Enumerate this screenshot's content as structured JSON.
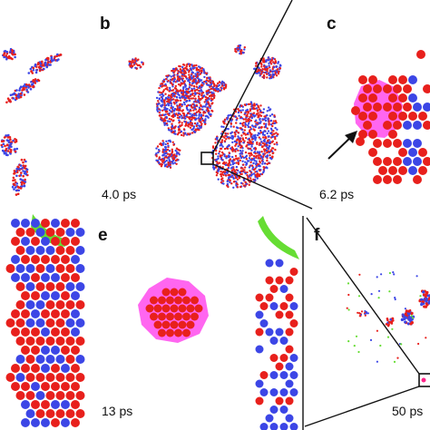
{
  "figure": {
    "panels": [
      {
        "id": "a",
        "label": "",
        "time": ""
      },
      {
        "id": "b",
        "label": "b",
        "time": "4.0 ps"
      },
      {
        "id": "c",
        "label": "c",
        "time": "6.2 ps"
      },
      {
        "id": "d",
        "label": "",
        "time": ""
      },
      {
        "id": "e",
        "label": "e",
        "time": "13 ps"
      },
      {
        "id": "f",
        "label": "f",
        "time": "50 ps"
      }
    ]
  },
  "colors": {
    "atom_red": "#e8201c",
    "atom_blue": "#3c46e6",
    "cluster_pink": "#ff55ee",
    "surface_green": "#66dd33",
    "guide_line": "#111111"
  },
  "icons": {
    "arrow": "arrow-icon",
    "zoom_box": "zoom-box-icon"
  }
}
